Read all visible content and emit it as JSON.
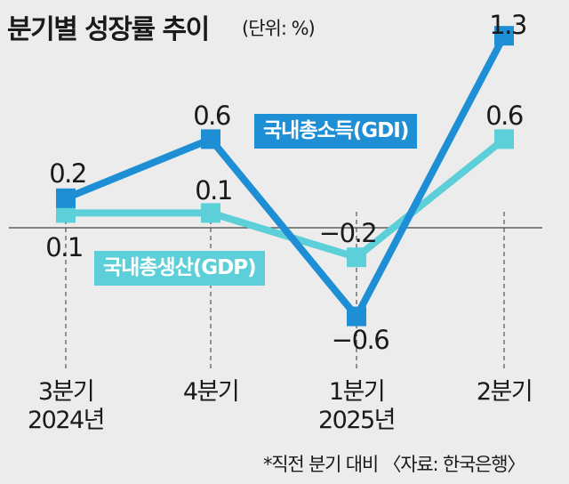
{
  "header": {
    "title": "분기별 성장률 추이",
    "unit": "(단위: %)"
  },
  "footnote": "*직전 분기 대비 〈자료: 한국은행〉",
  "chart_data": {
    "type": "line",
    "categories": [
      "3분기\n2024년",
      "4분기",
      "1분기\n2025년",
      "2분기"
    ],
    "series": [
      {
        "name": "국내총소득(GDI)",
        "values": [
          0.2,
          0.6,
          -0.6,
          1.3
        ],
        "color": "#1e8fd5"
      },
      {
        "name": "국내총생산(GDP)",
        "values": [
          0.1,
          0.1,
          -0.2,
          0.6
        ],
        "color": "#5ccfd9"
      }
    ],
    "ylabel": "%",
    "zero_line": true,
    "grid": "dashed vertical"
  }
}
